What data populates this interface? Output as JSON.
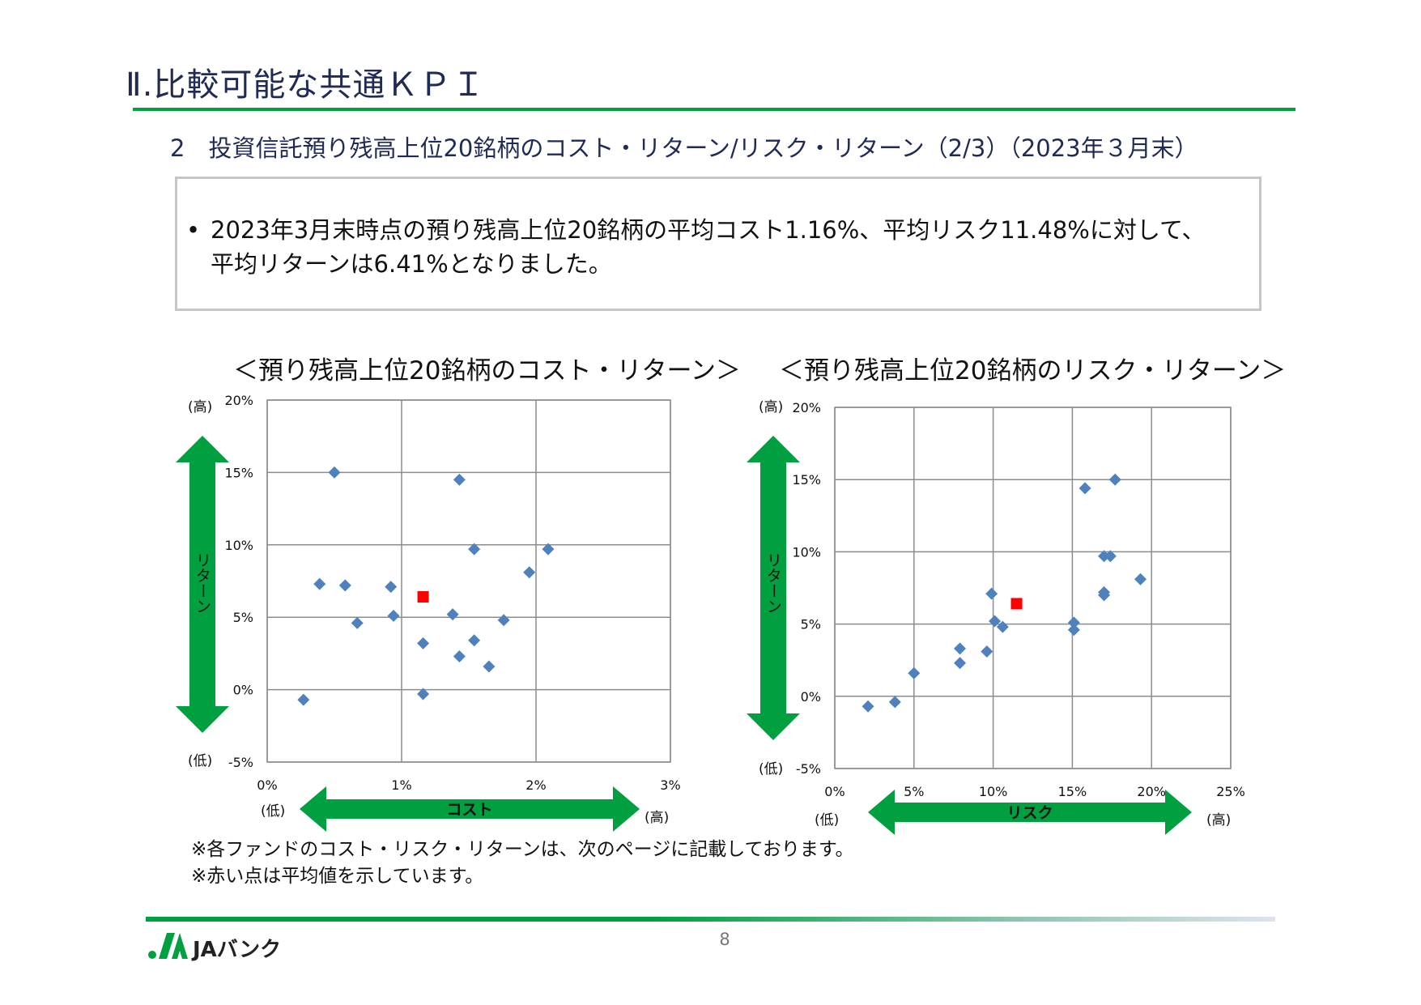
{
  "page": {
    "title": "Ⅱ.比較可能な共通ＫＰＩ",
    "subtitle": "2　投資信託預り残高上位20銘柄のコスト・リターン/リスク・リターン（2/3）（2023年３月末）",
    "summary": {
      "bullet": "•",
      "line1": "2023年3月末時点の預り残高上位20銘柄の平均コスト1.16%、平均リスク11.48%に対して、",
      "line2": "平均リターンは6.41%となりました。"
    },
    "notes": [
      "※各ファンドのコスト・リスク・リターンは、次のページに記載しております。",
      "※赤い点は平均値を示しています。"
    ],
    "page_number": "8",
    "logo_text": "JAバンク"
  },
  "colors": {
    "accent_green": "#00a040",
    "title_blue": "#1f2a55",
    "fund_point": "#4f81bd",
    "average_point": "#ff0000"
  },
  "chart_data": [
    {
      "type": "scatter",
      "title": "＜預り残高上位20銘柄のコスト・リターン＞",
      "xlabel": "コスト",
      "ylabel": "リターン",
      "x_low": "(低)",
      "x_high": "(高)",
      "y_low": "(低)",
      "y_high": "(高)",
      "xlim": [
        0,
        3
      ],
      "ylim": [
        -5,
        20
      ],
      "xticks": [
        "0%",
        "1%",
        "2%",
        "3%"
      ],
      "yticks": [
        "-5%",
        "0%",
        "5%",
        "10%",
        "15%",
        "20%"
      ],
      "grid": true,
      "series": [
        {
          "points": [
            [
              0.27,
              -0.7
            ],
            [
              0.39,
              7.3
            ],
            [
              0.5,
              15.0
            ],
            [
              0.58,
              7.2
            ],
            [
              0.67,
              4.6
            ],
            [
              0.92,
              7.1
            ],
            [
              0.94,
              5.1
            ],
            [
              1.16,
              3.2
            ],
            [
              1.16,
              -0.3
            ],
            [
              1.38,
              5.2
            ],
            [
              1.43,
              14.5
            ],
            [
              1.43,
              2.3
            ],
            [
              1.54,
              9.7
            ],
            [
              1.54,
              3.4
            ],
            [
              1.65,
              1.6
            ],
            [
              1.76,
              4.8
            ],
            [
              1.95,
              8.1
            ],
            [
              2.09,
              9.7
            ]
          ]
        },
        {
          "points": [
            [
              1.16,
              6.41
            ]
          ]
        }
      ]
    },
    {
      "type": "scatter",
      "title": "＜預り残高上位20銘柄のリスク・リターン＞",
      "xlabel": "リスク",
      "ylabel": "リターン",
      "x_low": "(低)",
      "x_high": "(高)",
      "y_low": "(低)",
      "y_high": "(高)",
      "xlim": [
        0,
        25
      ],
      "ylim": [
        -5,
        20
      ],
      "xticks": [
        "0%",
        "5%",
        "10%",
        "15%",
        "20%",
        "25%"
      ],
      "yticks": [
        "-5%",
        "0%",
        "5%",
        "10%",
        "15%",
        "20%"
      ],
      "grid": true,
      "series": [
        {
          "points": [
            [
              2.1,
              -0.7
            ],
            [
              3.8,
              -0.4
            ],
            [
              5.0,
              1.6
            ],
            [
              7.9,
              3.3
            ],
            [
              7.9,
              2.3
            ],
            [
              9.6,
              3.1
            ],
            [
              9.9,
              7.1
            ],
            [
              10.1,
              5.2
            ],
            [
              10.6,
              4.8
            ],
            [
              15.1,
              5.1
            ],
            [
              15.1,
              4.6
            ],
            [
              15.8,
              14.4
            ],
            [
              17.0,
              9.7
            ],
            [
              17.4,
              9.7
            ],
            [
              17.0,
              7.2
            ],
            [
              17.0,
              7.0
            ],
            [
              17.7,
              15.0
            ],
            [
              19.3,
              8.1
            ]
          ]
        },
        {
          "points": [
            [
              11.48,
              6.41
            ]
          ]
        }
      ]
    }
  ]
}
